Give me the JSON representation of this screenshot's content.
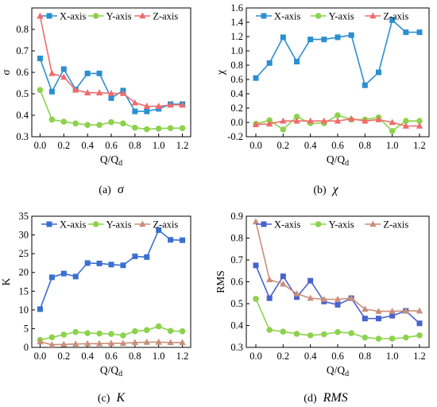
{
  "xlabel_base": "Q/Q",
  "xlabel_sub": "d",
  "chart_data": [
    {
      "type": "line",
      "panel_tag": "(a)",
      "panel_symbol": "σ",
      "ylabel": "σ",
      "x": [
        0.0,
        0.1,
        0.2,
        0.3,
        0.4,
        0.5,
        0.6,
        0.7,
        0.8,
        0.9,
        1.0,
        1.1,
        1.2
      ],
      "xlim": [
        -0.07,
        1.27
      ],
      "xticks": [
        "0.0",
        "0.2",
        "0.4",
        "0.6",
        "0.8",
        "1.0",
        "1.2"
      ],
      "ylim": [
        0.3,
        0.9
      ],
      "yticks": [
        "0.3",
        "0.4",
        "0.5",
        "0.6",
        "0.7",
        "0.8"
      ],
      "series": [
        {
          "name": "X-axis",
          "color": "#2b8fd0",
          "marker": "square",
          "values": [
            0.665,
            0.51,
            0.615,
            0.52,
            0.595,
            0.595,
            0.48,
            0.515,
            0.418,
            0.418,
            0.43,
            0.452,
            0.452
          ]
        },
        {
          "name": "Y-axis",
          "color": "#8cd24c",
          "marker": "circle",
          "values": [
            0.518,
            0.38,
            0.37,
            0.362,
            0.355,
            0.355,
            0.368,
            0.362,
            0.342,
            0.335,
            0.338,
            0.34,
            0.34
          ]
        },
        {
          "name": "Z-axis",
          "color": "#f06b6b",
          "marker": "triangle",
          "values": [
            0.862,
            0.595,
            0.578,
            0.518,
            0.505,
            0.505,
            0.502,
            0.502,
            0.458,
            0.442,
            0.442,
            0.448,
            0.448
          ]
        }
      ]
    },
    {
      "type": "line",
      "panel_tag": "(b)",
      "panel_symbol": "χ",
      "ylabel": "χ",
      "x": [
        0.0,
        0.1,
        0.2,
        0.3,
        0.4,
        0.5,
        0.6,
        0.7,
        0.8,
        0.9,
        1.0,
        1.1,
        1.2
      ],
      "xlim": [
        -0.07,
        1.27
      ],
      "xticks": [
        "0.0",
        "0.2",
        "0.4",
        "0.6",
        "0.8",
        "1.0",
        "1.2"
      ],
      "ylim": [
        -0.2,
        1.6
      ],
      "yticks": [
        "-0.2",
        "0.0",
        "0.2",
        "0.4",
        "0.6",
        "0.8",
        "1.0",
        "1.2",
        "1.4",
        "1.6"
      ],
      "series": [
        {
          "name": "X-axis",
          "color": "#2b8fd0",
          "marker": "square",
          "values": [
            0.62,
            0.83,
            1.19,
            0.85,
            1.16,
            1.16,
            1.19,
            1.22,
            0.52,
            0.7,
            1.43,
            1.26,
            1.26
          ]
        },
        {
          "name": "Y-axis",
          "color": "#8cd24c",
          "marker": "circle",
          "values": [
            -0.02,
            0.03,
            -0.1,
            0.08,
            -0.01,
            -0.01,
            0.1,
            0.04,
            0.04,
            0.07,
            -0.12,
            0.02,
            0.02
          ]
        },
        {
          "name": "Z-axis",
          "color": "#f06b6b",
          "marker": "triangle",
          "values": [
            -0.03,
            -0.02,
            0.02,
            0.02,
            0.02,
            0.02,
            0.02,
            0.05,
            0.02,
            0.04,
            0.0,
            -0.05,
            -0.05
          ]
        }
      ]
    },
    {
      "type": "line",
      "panel_tag": "(c)",
      "panel_symbol": "K",
      "ylabel": "K",
      "x": [
        0.0,
        0.1,
        0.2,
        0.3,
        0.4,
        0.5,
        0.6,
        0.7,
        0.8,
        0.9,
        1.0,
        1.1,
        1.2
      ],
      "xlim": [
        -0.07,
        1.27
      ],
      "xticks": [
        "0.0",
        "0.2",
        "0.4",
        "0.6",
        "0.8",
        "1.0",
        "1.2"
      ],
      "ylim": [
        0,
        35
      ],
      "yticks": [
        "0",
        "5",
        "10",
        "15",
        "20",
        "25",
        "30",
        "35"
      ],
      "series": [
        {
          "name": "X-axis",
          "color": "#3a6fd0",
          "marker": "square",
          "values": [
            10.2,
            18.7,
            19.7,
            18.9,
            22.5,
            22.4,
            22.1,
            21.9,
            24.3,
            24.1,
            31.3,
            28.7,
            28.6
          ]
        },
        {
          "name": "Y-axis",
          "color": "#8cd24c",
          "marker": "circle",
          "values": [
            2.0,
            2.7,
            3.4,
            4.1,
            3.8,
            3.7,
            3.6,
            3.2,
            4.3,
            4.6,
            5.6,
            4.4,
            4.3
          ]
        },
        {
          "name": "Z-axis",
          "color": "#c98f7a",
          "marker": "triangle",
          "values": [
            1.5,
            0.7,
            0.8,
            0.9,
            1.0,
            1.0,
            1.1,
            1.1,
            1.3,
            1.4,
            1.4,
            1.3,
            1.3
          ]
        }
      ]
    },
    {
      "type": "line",
      "panel_tag": "(d)",
      "panel_symbol": "RMS",
      "ylabel": "RMS",
      "x": [
        0.0,
        0.1,
        0.2,
        0.3,
        0.4,
        0.5,
        0.6,
        0.7,
        0.8,
        0.9,
        1.0,
        1.1,
        1.2
      ],
      "xlim": [
        -0.07,
        1.27
      ],
      "xticks": [
        "0.0",
        "0.2",
        "0.4",
        "0.6",
        "0.8",
        "1.0",
        "1.2"
      ],
      "ylim": [
        0.3,
        0.9
      ],
      "yticks": [
        "0.3",
        "0.4",
        "0.5",
        "0.6",
        "0.7",
        "0.8",
        "0.9"
      ],
      "series": [
        {
          "name": "X-axis",
          "color": "#4a63cc",
          "marker": "square",
          "values": [
            0.675,
            0.525,
            0.625,
            0.53,
            0.605,
            0.51,
            0.495,
            0.525,
            0.432,
            0.432,
            0.445,
            0.467,
            0.41
          ]
        },
        {
          "name": "Y-axis",
          "color": "#8cd24c",
          "marker": "circle",
          "values": [
            0.522,
            0.38,
            0.372,
            0.362,
            0.355,
            0.36,
            0.37,
            0.365,
            0.345,
            0.34,
            0.34,
            0.345,
            0.355
          ]
        },
        {
          "name": "Z-axis",
          "color": "#c98f7a",
          "marker": "triangle",
          "values": [
            0.875,
            0.61,
            0.59,
            0.545,
            0.525,
            0.52,
            0.52,
            0.525,
            0.475,
            0.465,
            0.465,
            0.467,
            0.467
          ]
        }
      ]
    }
  ]
}
